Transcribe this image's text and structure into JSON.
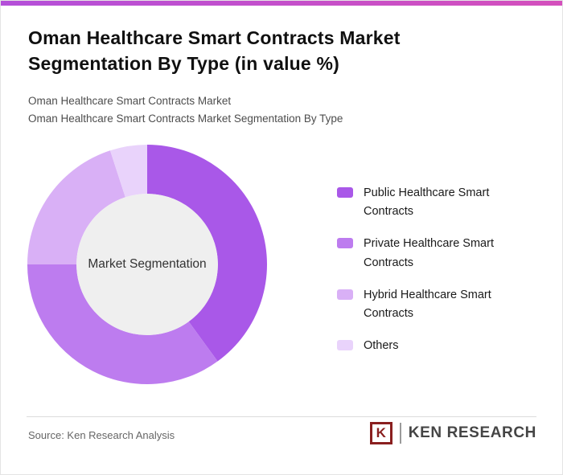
{
  "accent": {
    "bar_left": "#b44fd9",
    "bar_right": "#d44fbc"
  },
  "header": {
    "title": "Oman Healthcare Smart Contracts Market Segmentation By Type (in value %)",
    "subtitle_line1": "Oman Healthcare Smart Contracts Market",
    "subtitle_line2": "Oman Healthcare Smart Contracts Market Segmentation By Type"
  },
  "chart_data": {
    "type": "pie",
    "subtype": "donut",
    "title": "Oman Healthcare Smart Contracts Market Segmentation By Type (in value %)",
    "center_label": "Market Segmentation",
    "center_color": "#efefef",
    "categories": [
      "Public Healthcare Smart Contracts",
      "Private Healthcare Smart Contracts",
      "Hybrid Healthcare Smart Contracts",
      "Others"
    ],
    "values": [
      40,
      35,
      20,
      5
    ],
    "colors": [
      "#a958e8",
      "#bd7cef",
      "#d9b0f6",
      "#e9d3fb"
    ],
    "start_angle_deg": 0,
    "direction": "clockwise",
    "inner_radius_ratio": 0.59,
    "legend_position": "right",
    "data_labels": "none"
  },
  "footer": {
    "source": "Source: Ken Research Analysis",
    "logo_k": "K",
    "logo_text": "KEN RESEARCH",
    "logo_color": "#8a1f1f"
  }
}
